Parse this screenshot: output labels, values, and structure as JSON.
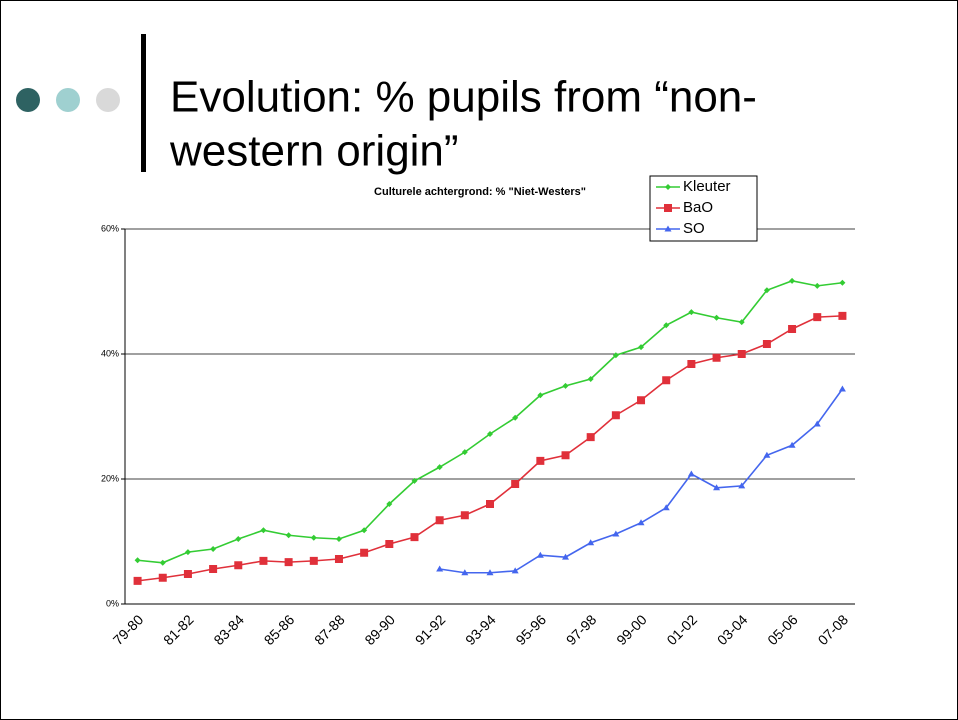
{
  "slide": {
    "title_lines": [
      "Evolution: % pupils from “non-",
      "western origin”"
    ]
  },
  "chart_data": {
    "type": "line",
    "title": "Culturele achtergrond: % \"Niet-Westers\"",
    "categories": [
      "79-80",
      null,
      "81-82",
      null,
      "83-84",
      null,
      "85-86",
      null,
      "87-88",
      null,
      "89-90",
      null,
      "91-92",
      null,
      "93-94",
      null,
      "95-96",
      null,
      "97-98",
      null,
      "99-00",
      null,
      "01-02",
      null,
      "03-04",
      null,
      "05-06",
      null,
      "07-08"
    ],
    "series": [
      {
        "name": "Kleuter",
        "color": "#33cc33",
        "marker": "diamond",
        "values": [
          7.0,
          6.6,
          8.3,
          8.8,
          10.4,
          11.8,
          11.0,
          10.6,
          10.4,
          11.8,
          16.0,
          19.7,
          21.9,
          24.3,
          27.2,
          29.8,
          33.4,
          34.9,
          36.0,
          39.8,
          41.1,
          44.6,
          46.7,
          45.8,
          45.1,
          50.2,
          51.7,
          50.9,
          51.4
        ]
      },
      {
        "name": "BaO",
        "color": "#e0303a",
        "marker": "square",
        "values": [
          3.7,
          4.2,
          4.8,
          5.6,
          6.2,
          6.9,
          6.7,
          6.9,
          7.2,
          8.2,
          9.6,
          10.7,
          13.4,
          14.2,
          16.0,
          19.2,
          22.9,
          23.8,
          26.7,
          30.2,
          32.6,
          35.8,
          38.4,
          39.4,
          40.0,
          41.6,
          44.0,
          45.9,
          46.1
        ]
      },
      {
        "name": "SO",
        "color": "#4466ee",
        "marker": "triangle",
        "values": [
          null,
          null,
          null,
          null,
          null,
          null,
          null,
          null,
          null,
          null,
          null,
          null,
          5.6,
          5.0,
          5.0,
          5.3,
          7.8,
          7.5,
          9.8,
          11.2,
          13.0,
          15.4,
          20.8,
          18.6,
          18.9,
          23.8,
          25.4,
          28.8,
          34.4
        ]
      }
    ],
    "ylim": [
      0,
      60
    ],
    "yticks": [
      {
        "value": 0,
        "label": "0%"
      },
      {
        "value": 20,
        "label": "20%"
      },
      {
        "value": 40,
        "label": "40%"
      },
      {
        "value": 60,
        "label": "60%"
      }
    ],
    "grid": true,
    "legend": "top-right"
  }
}
